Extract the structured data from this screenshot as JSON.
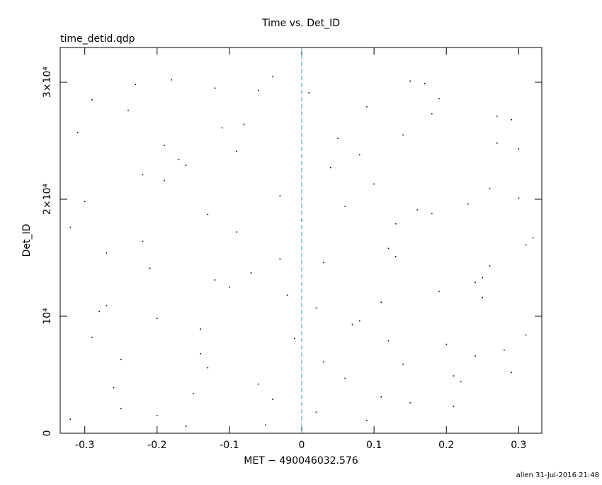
{
  "chart_data": {
    "type": "scatter",
    "title": "Time vs. Det_ID",
    "subtitle": "time_detid.qdp",
    "x_label": "MET − 490046032.576",
    "y_label": "Det_ID",
    "footer": "allen 31-Jul-2016 21:48",
    "xlim": [
      -0.334,
      0.332
    ],
    "ylim": [
      0,
      32970
    ],
    "xticks": [
      -0.3,
      -0.2,
      -0.1,
      0,
      0.1,
      0.2,
      0.3
    ],
    "yticks": [
      0,
      {
        "value": 10000,
        "label": "10⁴"
      },
      {
        "value": 20000,
        "label": "2×10⁴"
      },
      {
        "value": 30000,
        "label": "3×10⁴"
      }
    ],
    "color": "#000000",
    "marker_line": {
      "x": 0,
      "color": "#2a9fbf"
    },
    "x": [
      -0.32,
      -0.29,
      -0.27,
      -0.25,
      -0.22,
      -0.2,
      -0.18,
      -0.15,
      -0.13,
      -0.1,
      -0.08,
      -0.05,
      -0.03,
      -0.01,
      0.01,
      0.03,
      0.06,
      0.08,
      0.11,
      0.13,
      0.15,
      0.18,
      0.2,
      0.23,
      0.25,
      0.27,
      0.29,
      0.31,
      -0.31,
      -0.28,
      -0.26,
      -0.23,
      -0.21,
      -0.19,
      -0.16,
      -0.14,
      -0.11,
      -0.09,
      -0.06,
      -0.04,
      -0.02,
      0.02,
      0.04,
      0.07,
      0.09,
      0.12,
      0.14,
      0.16,
      0.19,
      0.21,
      0.24,
      0.26,
      0.28,
      0.3,
      0.32,
      -0.3,
      -0.27,
      -0.24,
      -0.2,
      -0.17,
      -0.14,
      -0.12,
      -0.07,
      -0.04,
      0.0,
      0.05,
      0.08,
      0.1,
      0.13,
      0.17,
      0.22,
      0.25,
      0.29,
      0.31,
      -0.32,
      -0.25,
      -0.19,
      -0.12,
      -0.06,
      0.03,
      0.06,
      0.11,
      0.15,
      0.19,
      0.24,
      0.27,
      -0.29,
      -0.22,
      -0.16,
      -0.09,
      -0.03,
      0.02,
      0.09,
      0.14,
      0.18,
      0.21,
      0.26,
      0.3,
      -0.13,
      0.12
    ],
    "y": [
      1200,
      28500,
      15400,
      6300,
      22100,
      9800,
      30200,
      3400,
      18700,
      12500,
      26400,
      700,
      20300,
      8100,
      29100,
      14600,
      4700,
      23800,
      11200,
      17900,
      2600,
      27300,
      7600,
      19600,
      13300,
      24800,
      5200,
      16100,
      25700,
      10400,
      3900,
      29800,
      14100,
      21600,
      600,
      8900,
      26100,
      17200,
      4200,
      30500,
      11800,
      1800,
      22700,
      9300,
      27900,
      15800,
      5900,
      19100,
      28600,
      2300,
      12900,
      20900,
      7100,
      24300,
      16700,
      19800,
      10900,
      27600,
      1500,
      23400,
      6800,
      29500,
      13700,
      2900,
      18200,
      25200,
      9600,
      21300,
      15100,
      29900,
      4400,
      11600,
      26800,
      8400,
      17600,
      2100,
      24600,
      13100,
      29300,
      6100,
      19400,
      3100,
      30100,
      12100,
      6600,
      27100,
      8200,
      16400,
      22900,
      24100,
      14900,
      10700,
      1100,
      25500,
      18800,
      4900,
      14300,
      20100,
      5600,
      7900
    ]
  }
}
